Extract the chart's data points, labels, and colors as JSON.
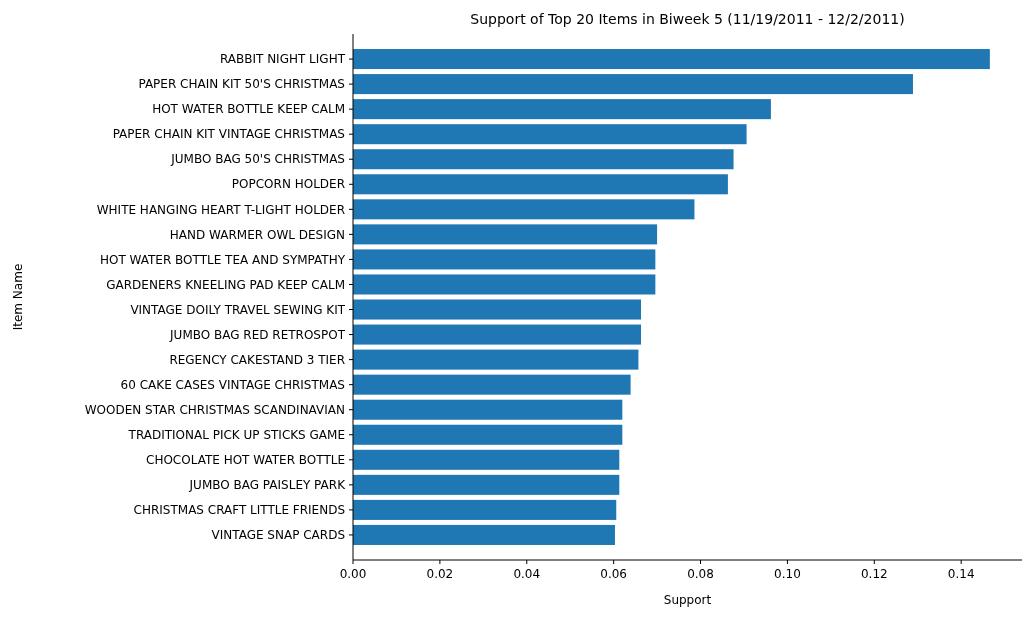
{
  "chart_data": {
    "type": "bar",
    "orientation": "horizontal",
    "title": "Support of Top 20 Items in Biweek 5 (11/19/2011 - 12/2/2011)",
    "xlabel": "Support",
    "ylabel": "Item Name",
    "categories": [
      "RABBIT NIGHT LIGHT",
      "PAPER CHAIN KIT 50'S CHRISTMAS",
      "HOT WATER BOTTLE KEEP CALM",
      "PAPER CHAIN KIT VINTAGE CHRISTMAS",
      "JUMBO BAG 50'S CHRISTMAS",
      "POPCORN HOLDER",
      "WHITE HANGING HEART T-LIGHT HOLDER",
      "HAND WARMER OWL DESIGN",
      "HOT WATER BOTTLE TEA AND SYMPATHY",
      "GARDENERS KNEELING PAD KEEP CALM",
      "VINTAGE DOILY TRAVEL SEWING KIT",
      "JUMBO BAG RED RETROSPOT",
      "REGENCY CAKESTAND 3 TIER",
      "60 CAKE CASES VINTAGE CHRISTMAS",
      "WOODEN STAR CHRISTMAS SCANDINAVIAN",
      "TRADITIONAL PICK UP STICKS GAME",
      "CHOCOLATE HOT WATER BOTTLE",
      "JUMBO BAG PAISLEY PARK",
      "CHRISTMAS CRAFT LITTLE FRIENDS",
      "VINTAGE SNAP CARDS"
    ],
    "values": [
      0.1466,
      0.1289,
      0.0962,
      0.0906,
      0.0876,
      0.0863,
      0.0786,
      0.07,
      0.0696,
      0.0696,
      0.0663,
      0.0663,
      0.0657,
      0.0639,
      0.062,
      0.062,
      0.0613,
      0.0613,
      0.0606,
      0.0603
    ],
    "color": "#1f77b4",
    "xlim": [
      0,
      0.154
    ],
    "xticks": [
      {
        "value": 0,
        "label": "0.00"
      },
      {
        "value": 0.02,
        "label": "0.02"
      },
      {
        "value": 0.04,
        "label": "0.04"
      },
      {
        "value": 0.06,
        "label": "0.06"
      },
      {
        "value": 0.08,
        "label": "0.08"
      },
      {
        "value": 0.1,
        "label": "0.10"
      },
      {
        "value": 0.12,
        "label": "0.12"
      },
      {
        "value": 0.14,
        "label": "0.14"
      }
    ]
  }
}
